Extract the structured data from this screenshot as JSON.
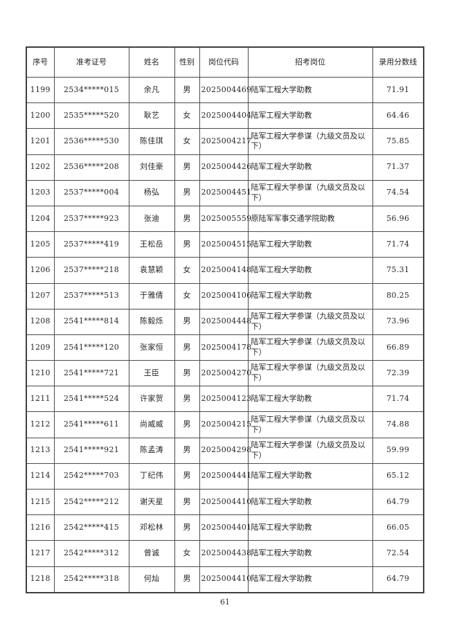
{
  "page": {
    "number": "61"
  },
  "table": {
    "headers": [
      "序号",
      "准考证号",
      "姓名",
      "性别",
      "岗位代码",
      "招考岗位",
      "录用分数线"
    ],
    "rows": [
      [
        "1199",
        "2534*****015",
        "余凡",
        "男",
        "2025004469",
        "陆军工程大学助教",
        "71.91"
      ],
      [
        "1200",
        "2535*****520",
        "耿艺",
        "女",
        "2025004404",
        "陆军工程大学助教",
        "64.46"
      ],
      [
        "1201",
        "2536*****530",
        "陈佳琪",
        "女",
        "2025004217",
        "陆军工程大学参谋（九级文员及以下）",
        "75.85"
      ],
      [
        "1202",
        "2536*****208",
        "刘佳豪",
        "男",
        "2025004426",
        "陆军工程大学助教",
        "71.37"
      ],
      [
        "1203",
        "2537*****004",
        "杨弘",
        "男",
        "2025004451",
        "陆军工程大学参谋（九级文员及以下）",
        "74.54"
      ],
      [
        "1204",
        "2537*****923",
        "张迪",
        "男",
        "2025005559",
        "原陆军军事交通学院助教",
        "56.96"
      ],
      [
        "1205",
        "2537*****419",
        "王松岳",
        "男",
        "2025004515",
        "陆军工程大学助教",
        "71.74"
      ],
      [
        "1206",
        "2537*****218",
        "袁慧颖",
        "女",
        "2025004148",
        "陆军工程大学助教",
        "75.31"
      ],
      [
        "1207",
        "2537*****513",
        "于雅倩",
        "女",
        "2025004106",
        "陆军工程大学助教",
        "80.25"
      ],
      [
        "1208",
        "2541*****814",
        "陈毅烁",
        "男",
        "2025004448",
        "陆军工程大学参谋（九级文员及以下）",
        "73.96"
      ],
      [
        "1209",
        "2541*****120",
        "张家恒",
        "男",
        "2025004178",
        "陆军工程大学参谋（九级文员及以下）",
        "66.89"
      ],
      [
        "1210",
        "2541*****721",
        "王臣",
        "男",
        "2025004270",
        "陆军工程大学参谋（九级文员及以下）",
        "72.39"
      ],
      [
        "1211",
        "2541*****524",
        "许家贺",
        "男",
        "2025004123",
        "陆军工程大学助教",
        "71.74"
      ],
      [
        "1212",
        "2541*****611",
        "尚威威",
        "男",
        "2025004215",
        "陆军工程大学参谋（九级文员及以下）",
        "74.88"
      ],
      [
        "1213",
        "2541*****921",
        "陈孟涛",
        "男",
        "2025004298",
        "陆军工程大学参谋（九级文员及以下）",
        "59.99"
      ],
      [
        "1214",
        "2542*****703",
        "丁纪伟",
        "男",
        "2025004441",
        "陆军工程大学助教",
        "65.12"
      ],
      [
        "1215",
        "2542*****212",
        "谢天星",
        "男",
        "2025004410",
        "陆军工程大学助教",
        "64.79"
      ],
      [
        "1216",
        "2542*****415",
        "邓松林",
        "男",
        "2025004401",
        "陆军工程大学助教",
        "66.05"
      ],
      [
        "1217",
        "2542*****312",
        "曾诚",
        "女",
        "2025004438",
        "陆军工程大学助教",
        "72.54"
      ],
      [
        "1218",
        "2542*****318",
        "何灿",
        "男",
        "2025004410",
        "陆军工程大学助教",
        "64.79"
      ]
    ]
  }
}
